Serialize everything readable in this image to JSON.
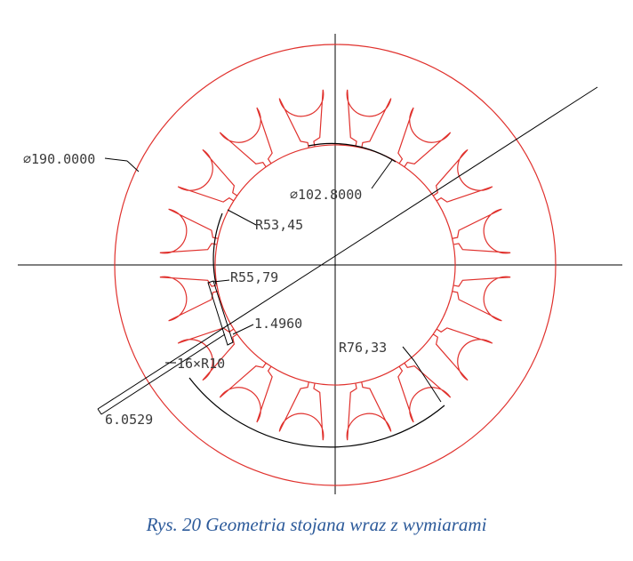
{
  "colors": {
    "geometry": "#e0312d",
    "dimension": "#3a3a3a",
    "caption": "#2c5a9a"
  },
  "drawing": {
    "outer_diameter_label": "⌀190.0000",
    "bore_diameter_label": "⌀102.8000",
    "radius_53_label": "R53,45",
    "radius_55_label": "R55,79",
    "slot_opening_label": "1.4960",
    "slot_fillet_label": "16×R10",
    "slot_depth_label": "6.0529",
    "slot_bottom_radius_label": "R76,33",
    "slot_count": 16
  },
  "caption": "Rys.  20 Geometria stojana wraz z wymiarami"
}
